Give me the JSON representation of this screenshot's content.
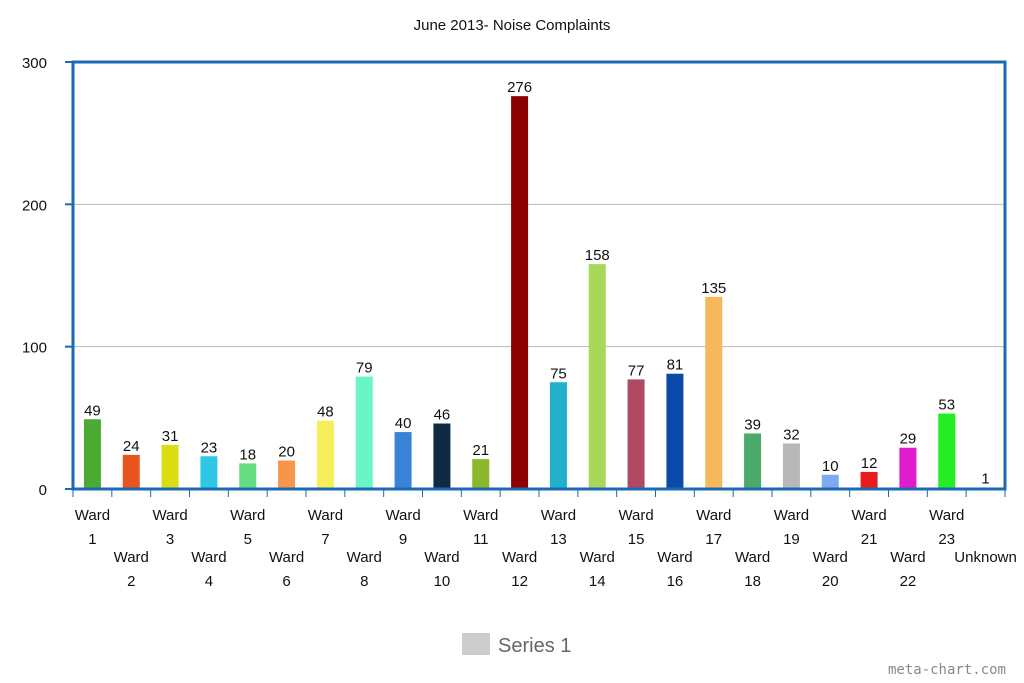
{
  "chart_data": {
    "type": "bar",
    "title": "June 2013- Noise Complaints",
    "xlabel": "",
    "ylabel": "",
    "ylim": [
      0,
      300
    ],
    "yticks": [
      0,
      100,
      200,
      300
    ],
    "grid": true,
    "legend_position": "bottom-center",
    "categories": [
      "Ward 1",
      "Ward 2",
      "Ward 3",
      "Ward 4",
      "Ward 5",
      "Ward 6",
      "Ward 7",
      "Ward 8",
      "Ward 9",
      "Ward 10",
      "Ward 11",
      "Ward 12",
      "Ward 13",
      "Ward 14",
      "Ward 15",
      "Ward 16",
      "Ward 17",
      "Ward 18",
      "Ward 19",
      "Ward 20",
      "Ward 21",
      "Ward 22",
      "Ward 23",
      "Unknown"
    ],
    "series": [
      {
        "name": "Series 1",
        "values": [
          49,
          24,
          31,
          23,
          18,
          20,
          48,
          79,
          40,
          46,
          21,
          276,
          75,
          158,
          77,
          81,
          135,
          39,
          32,
          10,
          12,
          29,
          53,
          1
        ]
      }
    ],
    "bar_colors": [
      "#4aaa32",
      "#e8561e",
      "#dddd14",
      "#2ec8e6",
      "#66dd82",
      "#f7964a",
      "#f7ee5a",
      "#6af5c4",
      "#3a82d6",
      "#0f2a44",
      "#8ab82a",
      "#8b0000",
      "#22b0cc",
      "#a8d85a",
      "#b04a64",
      "#0a4aa8",
      "#f5b85a",
      "#4aaa6a",
      "#b8b8b8",
      "#80aaf0",
      "#e81c1c",
      "#e01ccc",
      "#22ee22",
      "#dddddd"
    ],
    "legend_color": "#cccccc",
    "frame_color": "#1a6ab4"
  },
  "watermark": "meta-chart.com"
}
